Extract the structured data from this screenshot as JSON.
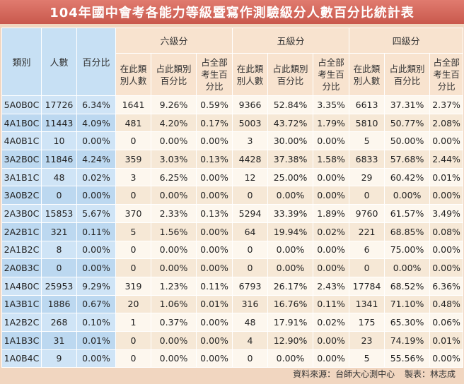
{
  "title": "104年國中會考各能力等級暨寫作測驗級分人數百分比統計表",
  "headers": {
    "category": "類別",
    "count": "人數",
    "percent": "百分比",
    "groups": [
      "六級分",
      "五級分",
      "四級分"
    ],
    "sub1": "在此類別人數",
    "sub2": "占此類別百分比",
    "sub3": "占全部考生百分比"
  },
  "rows": [
    [
      "5A0B0C",
      "17726",
      "6.34%",
      "1641",
      "9.26%",
      "0.59%",
      "9366",
      "52.84%",
      "3.35%",
      "6613",
      "37.31%",
      "2.37%"
    ],
    [
      "4A1B0C",
      "11443",
      "4.09%",
      "481",
      "4.20%",
      "0.17%",
      "5003",
      "43.72%",
      "1.79%",
      "5810",
      "50.77%",
      "2.08%"
    ],
    [
      "4A0B1C",
      "10",
      "0.00%",
      "0",
      "0.00%",
      "0.00%",
      "3",
      "30.00%",
      "0.00%",
      "5",
      "50.00%",
      "0.00%"
    ],
    [
      "3A2B0C",
      "11846",
      "4.24%",
      "359",
      "3.03%",
      "0.13%",
      "4428",
      "37.38%",
      "1.58%",
      "6833",
      "57.68%",
      "2.44%"
    ],
    [
      "3A1B1C",
      "48",
      "0.02%",
      "3",
      "6.25%",
      "0.00%",
      "12",
      "25.00%",
      "0.00%",
      "29",
      "60.42%",
      "0.01%"
    ],
    [
      "3A0B2C",
      "0",
      "0.00%",
      "0",
      "0.00%",
      "0.00%",
      "0",
      "0.00%",
      "0.00%",
      "0",
      "0.00%",
      "0.00%"
    ],
    [
      "2A3B0C",
      "15853",
      "5.67%",
      "370",
      "2.33%",
      "0.13%",
      "5294",
      "33.39%",
      "1.89%",
      "9760",
      "61.57%",
      "3.49%"
    ],
    [
      "2A2B1C",
      "321",
      "0.11%",
      "5",
      "1.56%",
      "0.00%",
      "64",
      "19.94%",
      "0.02%",
      "221",
      "68.85%",
      "0.08%"
    ],
    [
      "2A1B2C",
      "8",
      "0.00%",
      "0",
      "0.00%",
      "0.00%",
      "0",
      "0.00%",
      "0.00%",
      "6",
      "75.00%",
      "0.00%"
    ],
    [
      "2A0B3C",
      "0",
      "0.00%",
      "0",
      "0.00%",
      "0.00%",
      "0",
      "0.00%",
      "0.00%",
      "0",
      "0.00%",
      "0.00%"
    ],
    [
      "1A4B0C",
      "25953",
      "9.29%",
      "319",
      "1.23%",
      "0.11%",
      "6793",
      "26.17%",
      "2.43%",
      "17784",
      "68.52%",
      "6.36%"
    ],
    [
      "1A3B1C",
      "1886",
      "0.67%",
      "20",
      "1.06%",
      "0.01%",
      "316",
      "16.76%",
      "0.11%",
      "1341",
      "71.10%",
      "0.48%"
    ],
    [
      "1A2B2C",
      "268",
      "0.10%",
      "1",
      "0.37%",
      "0.00%",
      "48",
      "17.91%",
      "0.02%",
      "175",
      "65.30%",
      "0.06%"
    ],
    [
      "1A1B3C",
      "31",
      "0.01%",
      "0",
      "0.00%",
      "0.00%",
      "4",
      "12.90%",
      "0.00%",
      "23",
      "74.19%",
      "0.01%"
    ],
    [
      "1A0B4C",
      "9",
      "0.00%",
      "0",
      "0.00%",
      "0.00%",
      "0",
      "0.00%",
      "0.00%",
      "5",
      "55.56%",
      "0.00%"
    ]
  ],
  "footer": {
    "source": "資料來源：台師大心測中心",
    "maker": "製表：林志成"
  }
}
